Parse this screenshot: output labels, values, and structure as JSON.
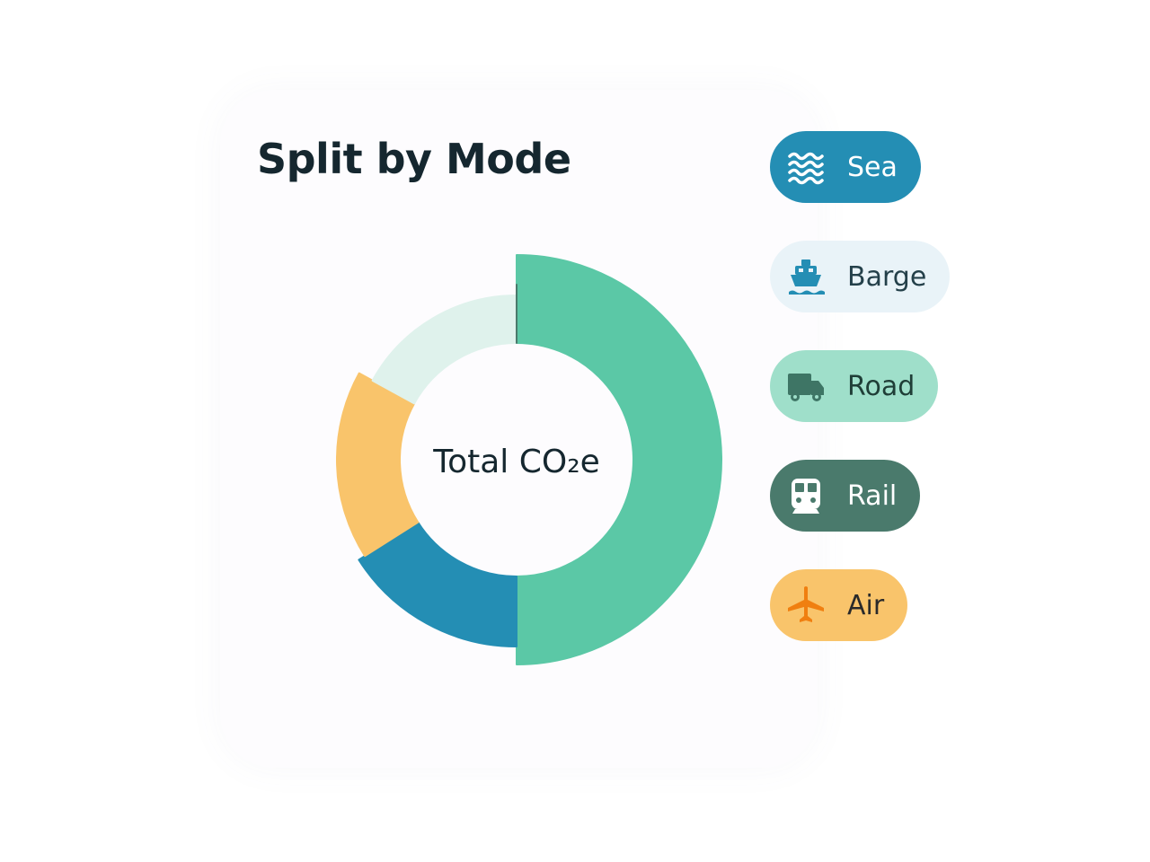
{
  "chart_data": {
    "type": "donut",
    "title": "Split by Mode",
    "center_label": "Total CO₂e",
    "categories": [
      "Sea",
      "Barge",
      "Road",
      "Rail",
      "Air"
    ],
    "values": [
      16,
      17,
      50,
      0,
      17
    ],
    "colors": [
      "#248eb4",
      "#dff2ec",
      "#5bc8a6",
      "#4a7a6c",
      "#f9c46b"
    ]
  }
}
